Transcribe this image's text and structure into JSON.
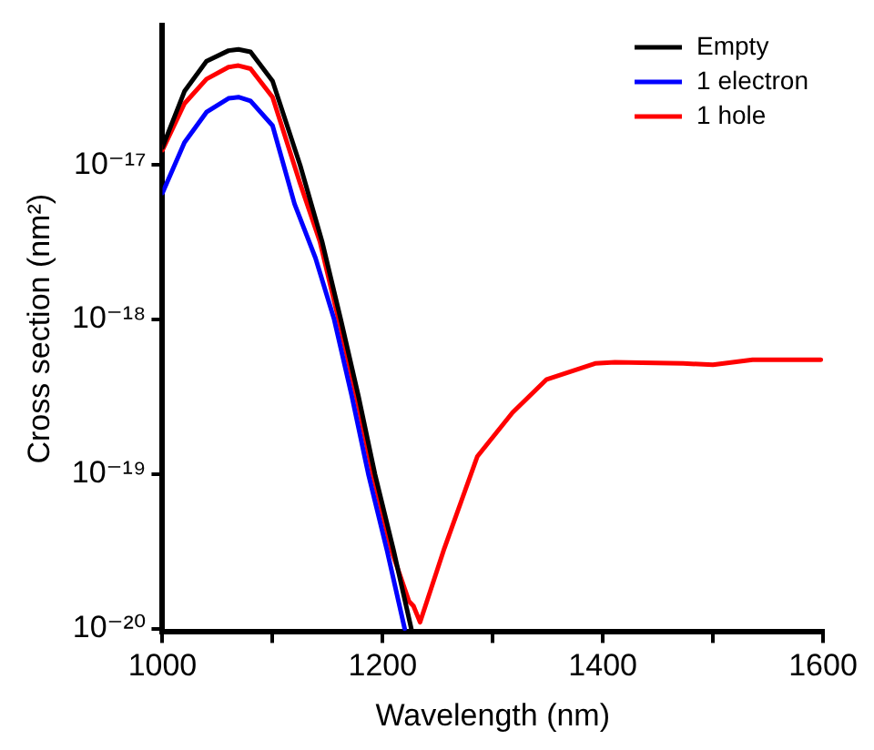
{
  "chart_data": {
    "type": "line",
    "xlabel": "Wavelength (nm)",
    "ylabel": "Cross section (nm²)",
    "xlim": [
      1000,
      1600
    ],
    "xticks": [
      1000,
      {
        "value": 1100,
        "label": null
      },
      1200,
      {
        "value": 1300,
        "label": null
      },
      1400,
      {
        "value": 1500,
        "label": null
      },
      1600
    ],
    "ylim": [
      9.5e-21,
      8e-17
    ],
    "yticks": [
      {
        "value": 1e-20,
        "label": "10⁻²⁰"
      },
      {
        "value": 1e-19,
        "label": "10⁻¹⁹"
      },
      {
        "value": 1e-18,
        "label": "10⁻¹⁸"
      },
      {
        "value": 1e-17,
        "label": "10⁻¹⁷"
      }
    ],
    "log": "y",
    "grid": false,
    "legend": "top right",
    "marker": "none",
    "line_style": "solid",
    "series": [
      {
        "name": "Empty",
        "color": "#000000",
        "x": [
          1000,
          1020,
          1040,
          1060,
          1069,
          1080,
          1100,
          1125,
          1145,
          1162,
          1178,
          1193,
          1210,
          1226
        ],
        "values": [
          1.3e-17,
          3e-17,
          4.7e-17,
          5.5e-17,
          5.6e-17,
          5.4e-17,
          3.5e-17,
          1e-17,
          3.2e-18,
          1e-18,
          3.2e-19,
          1e-19,
          3.2e-20,
          1e-20
        ]
      },
      {
        "name": "1 electron",
        "color": "#0000ff",
        "x": [
          1000,
          1020,
          1040,
          1060,
          1069,
          1080,
          1100,
          1120,
          1139,
          1156,
          1172,
          1187,
          1204,
          1220
        ],
        "values": [
          6.6e-18,
          1.4e-17,
          2.2e-17,
          2.7e-17,
          2.75e-17,
          2.6e-17,
          1.8e-17,
          5.6e-18,
          2.5e-18,
          1e-18,
          3.2e-19,
          1e-19,
          3.2e-20,
          1e-20
        ]
      },
      {
        "name": "1 hole",
        "color": "#ff0000",
        "x": [
          1000,
          1020,
          1040,
          1060,
          1069,
          1080,
          1100,
          1125,
          1143,
          1160,
          1176,
          1191,
          1208,
          1224,
          1228,
          1234,
          1256,
          1286,
          1318,
          1349,
          1393,
          1411,
          1473,
          1500,
          1536,
          1598
        ],
        "values": [
          1.25e-17,
          2.5e-17,
          3.6e-17,
          4.3e-17,
          4.4e-17,
          4.2e-17,
          2.75e-17,
          7.6e-18,
          3.2e-18,
          1e-18,
          3.2e-19,
          1e-19,
          3.2e-20,
          1.5e-20,
          1.4e-20,
          1.1e-20,
          3.3e-20,
          1.3e-19,
          2.5e-19,
          4.1e-19,
          5.2e-19,
          5.3e-19,
          5.2e-19,
          5.1e-19,
          5.5e-19,
          5.5e-19
        ]
      }
    ]
  }
}
